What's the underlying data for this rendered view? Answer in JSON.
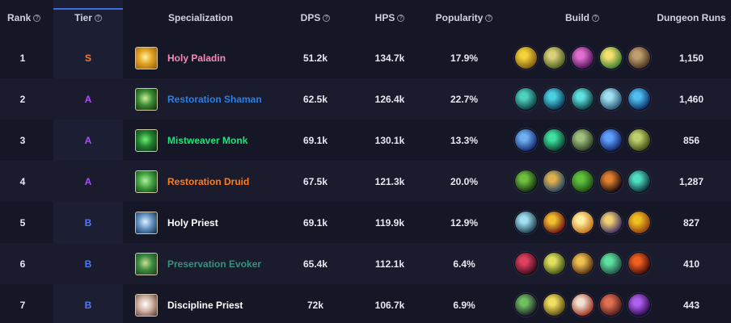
{
  "headers": {
    "rank": "Rank",
    "tier": "Tier",
    "specialization": "Specialization",
    "dps": "DPS",
    "hps": "HPS",
    "popularity": "Popularity",
    "build": "Build",
    "dungeon_runs": "Dungeon Runs"
  },
  "tier_colors": {
    "S": "#ff7a2a",
    "A": "#b04cff",
    "B": "#4d7bff"
  },
  "rows": [
    {
      "rank": "1",
      "tier": "S",
      "spec": "Holy Paladin",
      "spec_color": "#f48cba",
      "spec_icon": "holy-light-icon",
      "spec_icon_colors": [
        "#fff2a0",
        "#e0a020",
        "#8a5a10"
      ],
      "dps": "51.2k",
      "hps": "134.7k",
      "popularity": "17.9%",
      "runs": "1,150",
      "build": [
        {
          "icon": "golden-rays-icon",
          "colors": [
            "#f5d13a",
            "#7a5a10"
          ]
        },
        {
          "icon": "winged-light-icon",
          "colors": [
            "#d9d07a",
            "#4a5a20"
          ]
        },
        {
          "icon": "pink-seal-icon",
          "colors": [
            "#e070d0",
            "#4a1050"
          ]
        },
        {
          "icon": "sunburst-icon",
          "colors": [
            "#f3e070",
            "#3a7a30"
          ]
        },
        {
          "icon": "paladin-helm-icon",
          "colors": [
            "#c0a070",
            "#4a3020"
          ]
        }
      ]
    },
    {
      "rank": "2",
      "tier": "A",
      "spec": "Restoration Shaman",
      "spec_color": "#2a7fe8",
      "spec_icon": "healing-stream-icon",
      "spec_icon_colors": [
        "#d0f0a0",
        "#3a8a30",
        "#0f2a10"
      ],
      "dps": "62.5k",
      "hps": "126.4k",
      "popularity": "22.7%",
      "runs": "1,460",
      "build": [
        {
          "icon": "tidal-wave-icon",
          "colors": [
            "#50d0c0",
            "#0a3a40"
          ]
        },
        {
          "icon": "water-spout-icon",
          "colors": [
            "#4ad0e0",
            "#0a3050"
          ]
        },
        {
          "icon": "frost-burst-icon",
          "colors": [
            "#60e0e0",
            "#0a3a3a"
          ]
        },
        {
          "icon": "water-elemental-icon",
          "colors": [
            "#a0e0f0",
            "#2a5070"
          ]
        },
        {
          "icon": "tidal-spiral-icon",
          "colors": [
            "#50c0f0",
            "#0a2a60"
          ]
        }
      ]
    },
    {
      "rank": "3",
      "tier": "A",
      "spec": "Mistweaver Monk",
      "spec_color": "#22e07a",
      "spec_icon": "jade-serpent-icon",
      "spec_icon_colors": [
        "#70f070",
        "#208030",
        "#0a2a10"
      ],
      "dps": "69.1k",
      "hps": "130.1k",
      "popularity": "13.3%",
      "runs": "856",
      "build": [
        {
          "icon": "chi-burst-icon",
          "colors": [
            "#70b0f0",
            "#102a70"
          ]
        },
        {
          "icon": "jade-mist-icon",
          "colors": [
            "#40e0a0",
            "#0a3a2a"
          ]
        },
        {
          "icon": "monk-scroll-icon",
          "colors": [
            "#a0c080",
            "#2a3a20"
          ]
        },
        {
          "icon": "lightning-beam-icon",
          "colors": [
            "#60a0ff",
            "#102060"
          ]
        },
        {
          "icon": "tea-brew-icon",
          "colors": [
            "#c0d070",
            "#3a4a10"
          ]
        }
      ]
    },
    {
      "rank": "4",
      "tier": "A",
      "spec": "Restoration Druid",
      "spec_color": "#ff7c1a",
      "spec_icon": "nature-leaf-icon",
      "spec_icon_colors": [
        "#b0f0a0",
        "#40a040",
        "#103010"
      ],
      "dps": "67.5k",
      "hps": "121.3k",
      "popularity": "20.0%",
      "runs": "1,287",
      "build": [
        {
          "icon": "vine-swirl-icon",
          "colors": [
            "#70c040",
            "#102a10"
          ]
        },
        {
          "icon": "blossom-icon",
          "colors": [
            "#e0b050",
            "#1a4060"
          ]
        },
        {
          "icon": "seed-pod-icon",
          "colors": [
            "#60c040",
            "#1a4a10"
          ]
        },
        {
          "icon": "dark-claw-icon",
          "colors": [
            "#e08030",
            "#1a0a0a"
          ]
        },
        {
          "icon": "swift-leaf-icon",
          "colors": [
            "#50e0c0",
            "#0a2a3a"
          ]
        }
      ]
    },
    {
      "rank": "5",
      "tier": "B",
      "spec": "Holy Priest",
      "spec_color": "#ffffff",
      "spec_icon": "angel-spirit-icon",
      "spec_icon_colors": [
        "#e0f0ff",
        "#6090c0",
        "#10203a"
      ],
      "dps": "69.1k",
      "hps": "119.9k",
      "popularity": "12.9%",
      "runs": "827",
      "build": [
        {
          "icon": "divine-sigil-icon",
          "colors": [
            "#a0e0f0",
            "#1a3a4a"
          ]
        },
        {
          "icon": "sacred-circle-icon",
          "colors": [
            "#f0c030",
            "#6a1010"
          ]
        },
        {
          "icon": "holy-flame-icon",
          "colors": [
            "#fff0a0",
            "#c07010"
          ]
        },
        {
          "icon": "crescent-moon-icon",
          "colors": [
            "#f0d070",
            "#3a2a60"
          ]
        },
        {
          "icon": "radiant-bloom-icon",
          "colors": [
            "#f0c020",
            "#8a3a10"
          ]
        }
      ]
    },
    {
      "rank": "6",
      "tier": "B",
      "spec": "Preservation Evoker",
      "spec_color": "#33937f",
      "spec_icon": "dragon-rune-icon",
      "spec_icon_colors": [
        "#d0e090",
        "#3a8a40",
        "#1a3a20"
      ],
      "dps": "65.4k",
      "hps": "112.1k",
      "popularity": "6.4%",
      "runs": "410",
      "build": [
        {
          "icon": "dragon-claw-icon",
          "colors": [
            "#e04060",
            "#3a0a1a"
          ]
        },
        {
          "icon": "time-ring-icon",
          "colors": [
            "#e0e060",
            "#3a4a10"
          ]
        },
        {
          "icon": "golden-egg-icon",
          "colors": [
            "#f0c050",
            "#4a2a10"
          ]
        },
        {
          "icon": "emerald-breath-icon",
          "colors": [
            "#60e0a0",
            "#1a4a40"
          ]
        },
        {
          "icon": "amber-eye-icon",
          "colors": [
            "#f06020",
            "#3a0a0a"
          ]
        }
      ]
    },
    {
      "rank": "7",
      "tier": "B",
      "spec": "Discipline Priest",
      "spec_color": "#ffffff",
      "spec_icon": "shield-rune-icon",
      "spec_icon_colors": [
        "#ffffff",
        "#d0b0a0",
        "#503030"
      ],
      "dps": "72k",
      "hps": "106.7k",
      "popularity": "6.9%",
      "runs": "443",
      "build": [
        {
          "icon": "shadow-spike-icon",
          "colors": [
            "#70c060",
            "#1a1a2a"
          ]
        },
        {
          "icon": "radiant-figure-icon",
          "colors": [
            "#f0e060",
            "#5a4a10"
          ]
        },
        {
          "icon": "penance-icon",
          "colors": [
            "#f0e0d0",
            "#a03020"
          ]
        },
        {
          "icon": "shadow-fiend-icon",
          "colors": [
            "#e07050",
            "#4a1a1a"
          ]
        },
        {
          "icon": "void-tendril-icon",
          "colors": [
            "#b060f0",
            "#2a0a4a"
          ]
        }
      ]
    }
  ]
}
